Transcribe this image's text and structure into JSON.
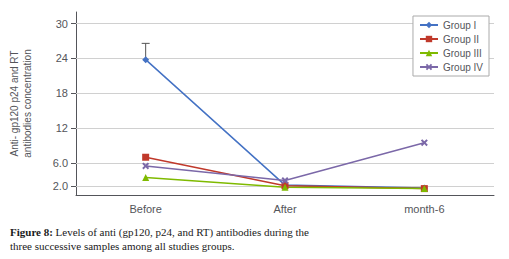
{
  "chart_data": {
    "type": "line",
    "categories": [
      "Before",
      "After",
      "month-6"
    ],
    "series": [
      {
        "name": "Group I",
        "color": "#4472C4",
        "marker": "diamond",
        "values": [
          23.8,
          2.2,
          1.7
        ],
        "error_plus": [
          2.8,
          null,
          null
        ]
      },
      {
        "name": "Group II",
        "color": "#C0392B",
        "marker": "square",
        "values": [
          7.0,
          2.1,
          1.6
        ]
      },
      {
        "name": "Group III",
        "color": "#7FBA00",
        "marker": "triangle",
        "values": [
          3.5,
          1.85,
          1.6
        ]
      },
      {
        "name": "Group IV",
        "color": "#7B68A8",
        "marker": "x",
        "values": [
          5.5,
          3.0,
          9.5
        ]
      }
    ],
    "y_label": "Anti- gp120 p24 and RT\nantibodies concentration",
    "ylim": [
      0.5,
      32
    ],
    "yticks": [
      {
        "value": 2.0,
        "label": "2.0"
      },
      {
        "value": 6.0,
        "label": "6.0"
      },
      12,
      18,
      24,
      30
    ],
    "grid": true,
    "legend": "upper right",
    "caption": {
      "label": "Figure 8:",
      "text": "Levels of anti (gp120, p24, and RT) antibodies during the\nthree successive samples among all studies groups."
    }
  }
}
